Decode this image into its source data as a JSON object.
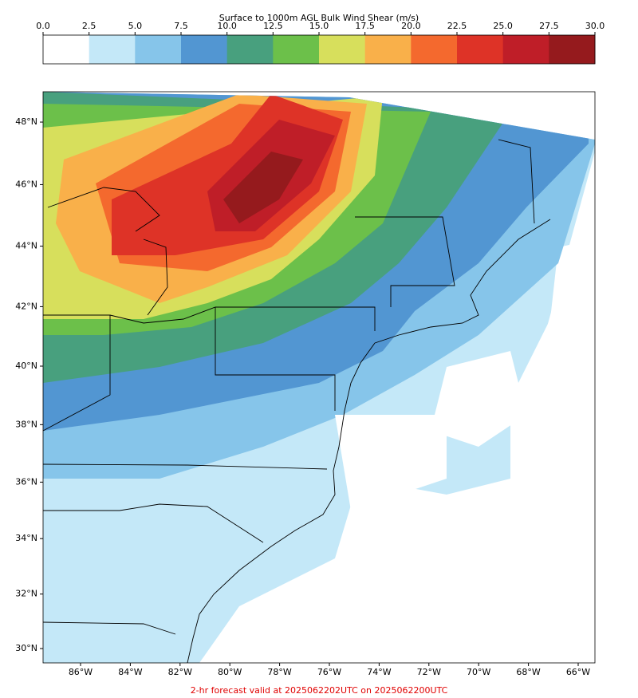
{
  "colorbar": {
    "title": "Surface to 1000m AGL Bulk Wind Shear (m/s)",
    "ticks": [
      {
        "value": 0,
        "label": "0.0"
      },
      {
        "value": 2.5,
        "label": "2.5"
      },
      {
        "value": 5,
        "label": "5.0"
      },
      {
        "value": 7.5,
        "label": "7.5"
      },
      {
        "value": 10,
        "label": "10.0"
      },
      {
        "value": 12.5,
        "label": "12.5"
      },
      {
        "value": 15,
        "label": "15.0"
      },
      {
        "value": 17.5,
        "label": "17.5"
      },
      {
        "value": 20,
        "label": "20.0"
      },
      {
        "value": 22.5,
        "label": "22.5"
      },
      {
        "value": 25,
        "label": "25.0"
      },
      {
        "value": 27.5,
        "label": "27.5"
      },
      {
        "value": 30,
        "label": "30.0"
      }
    ],
    "colors": [
      "#ffffff",
      "#c4e8f8",
      "#86c5ea",
      "#5296d2",
      "#48a07e",
      "#6cc04a",
      "#d7df5c",
      "#f9b04a",
      "#f4692e",
      "#de3327",
      "#bf1e28",
      "#951a1d"
    ]
  },
  "map": {
    "lat_labels": [
      {
        "value": 48,
        "label": "48°N"
      },
      {
        "value": 46,
        "label": "46°N"
      },
      {
        "value": 44,
        "label": "44°N"
      },
      {
        "value": 42,
        "label": "42°N"
      },
      {
        "value": 40,
        "label": "40°N"
      },
      {
        "value": 38,
        "label": "38°N"
      },
      {
        "value": 36,
        "label": "36°N"
      },
      {
        "value": 34,
        "label": "34°N"
      },
      {
        "value": 32,
        "label": "32°N"
      },
      {
        "value": 30,
        "label": "30°N"
      }
    ],
    "lon_labels": [
      {
        "value": -86,
        "label": "86°W"
      },
      {
        "value": -84,
        "label": "84°W"
      },
      {
        "value": -82,
        "label": "82°W"
      },
      {
        "value": -80,
        "label": "80°W"
      },
      {
        "value": -78,
        "label": "78°W"
      },
      {
        "value": -76,
        "label": "76°W"
      },
      {
        "value": -74,
        "label": "74°W"
      },
      {
        "value": -72,
        "label": "72°W"
      },
      {
        "value": -70,
        "label": "70°W"
      },
      {
        "value": -68,
        "label": "68°W"
      },
      {
        "value": -66,
        "label": "66°W"
      }
    ]
  },
  "footer": "2-hr forecast valid at 2025062202UTC on 2025062200UTC"
}
